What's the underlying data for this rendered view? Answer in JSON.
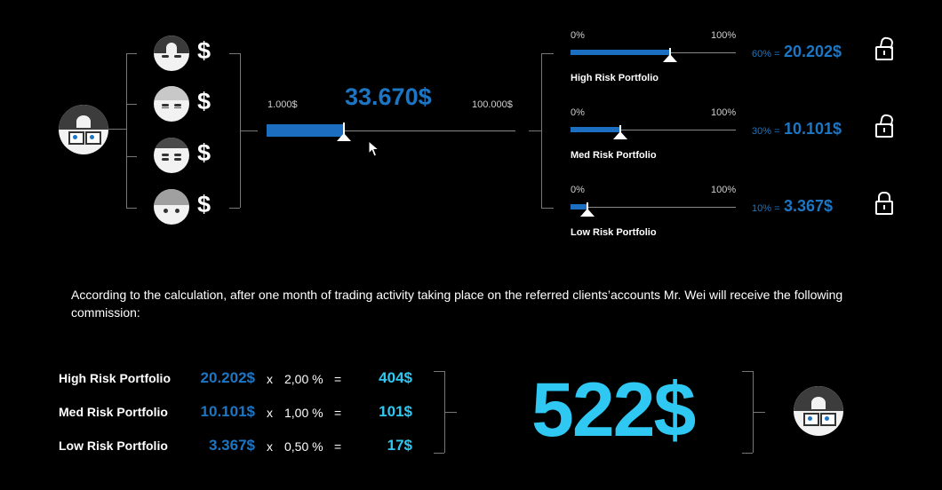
{
  "colors": {
    "accent_blue": "#1c76c4",
    "accent_cyan": "#2fc8f2",
    "background": "#000000"
  },
  "icons": [
    "person-avatar-icon",
    "dollar-icon",
    "lock-open-icon",
    "lock-closed-icon",
    "mouse-cursor-icon"
  ],
  "amount_slider": {
    "min_label": "1.000$",
    "max_label": "100.000$",
    "value_label": "33.670$",
    "fill_fraction": 0.31
  },
  "portfolios": [
    {
      "name": "High Risk Portfolio",
      "min_label": "0%",
      "max_label": "100%",
      "pct_label": "60% =",
      "value_label": "20.202$",
      "fraction": 0.6,
      "lock": "open"
    },
    {
      "name": "Med Risk Portfolio",
      "min_label": "0%",
      "max_label": "100%",
      "pct_label": "30% =",
      "value_label": "10.101$",
      "fraction": 0.3,
      "lock": "open"
    },
    {
      "name": "Low Risk Portfolio",
      "min_label": "0%",
      "max_label": "100%",
      "pct_label": "10% =",
      "value_label": "3.367$",
      "fraction": 0.1,
      "lock": "closed"
    }
  ],
  "dollar_sign": "$",
  "description": "According to the calculation, after one month of trading activity taking place on the referred clients’accounts Mr. Wei will receive the following commission:",
  "commission_rows": [
    {
      "label": "High Risk Portfolio",
      "value": "20.202$",
      "x": "x",
      "rate": "2,00 %",
      "eq": "=",
      "result": "404$"
    },
    {
      "label": "Med Risk Portfolio",
      "value": "10.101$",
      "x": "x",
      "rate": "1,00 %",
      "eq": "=",
      "result": "101$"
    },
    {
      "label": "Low Risk Portfolio",
      "value": "3.367$",
      "x": "x",
      "rate": "0,50 %",
      "eq": "=",
      "result": "17$"
    }
  ],
  "total": "522$"
}
